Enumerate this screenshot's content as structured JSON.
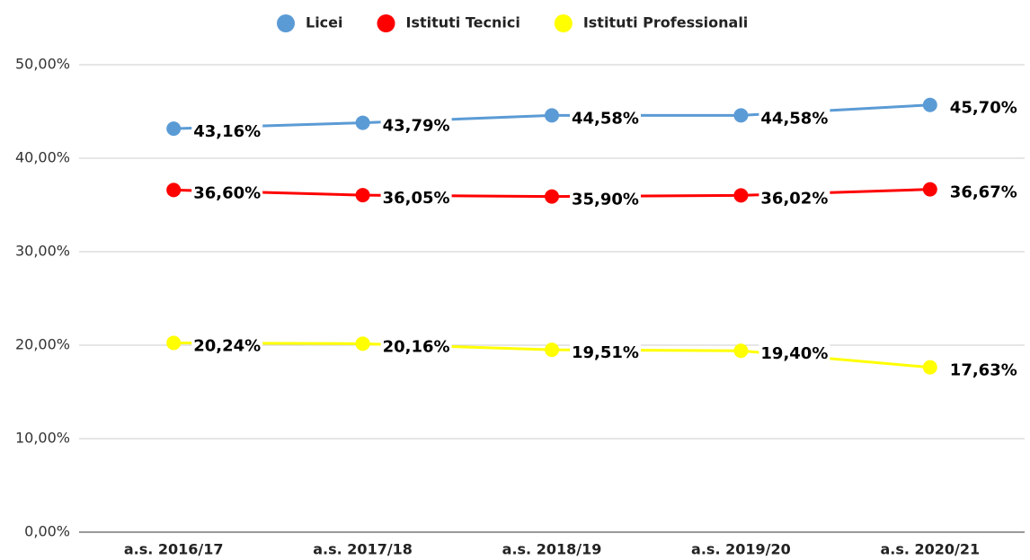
{
  "chart_data": {
    "type": "line",
    "categories": [
      "a.s. 2016/17",
      "a.s. 2017/18",
      "a.s. 2018/19",
      "a.s. 2019/20",
      "a.s. 2020/21"
    ],
    "series": [
      {
        "name": "Licei",
        "color": "#5b9bd5",
        "values": [
          43.16,
          43.79,
          44.58,
          44.58,
          45.7
        ],
        "value_labels": [
          "43,16%",
          "43,79%",
          "44,58%",
          "44,58%",
          "45,70%"
        ]
      },
      {
        "name": "Istituti Tecnici",
        "color": "#ff0000",
        "values": [
          36.6,
          36.05,
          35.9,
          36.02,
          36.67
        ],
        "value_labels": [
          "36,60%",
          "36,05%",
          "35,90%",
          "36,02%",
          "36,67%"
        ]
      },
      {
        "name": "Istituti Professionali",
        "color": "#ffff00",
        "values": [
          20.24,
          20.16,
          19.51,
          19.4,
          17.63
        ],
        "value_labels": [
          "20,24%",
          "20,16%",
          "19,51%",
          "19,40%",
          "17,63%"
        ]
      }
    ],
    "ylim": [
      0,
      50
    ],
    "yticks": [
      {
        "value": 0,
        "label": "0,00%"
      },
      {
        "value": 10,
        "label": "10,00%"
      },
      {
        "value": 20,
        "label": "20,00%"
      },
      {
        "value": 30,
        "label": "30,00%"
      },
      {
        "value": 40,
        "label": "40,00%"
      },
      {
        "value": 50,
        "label": "50,00%"
      }
    ],
    "grid": true,
    "legend": "top"
  }
}
